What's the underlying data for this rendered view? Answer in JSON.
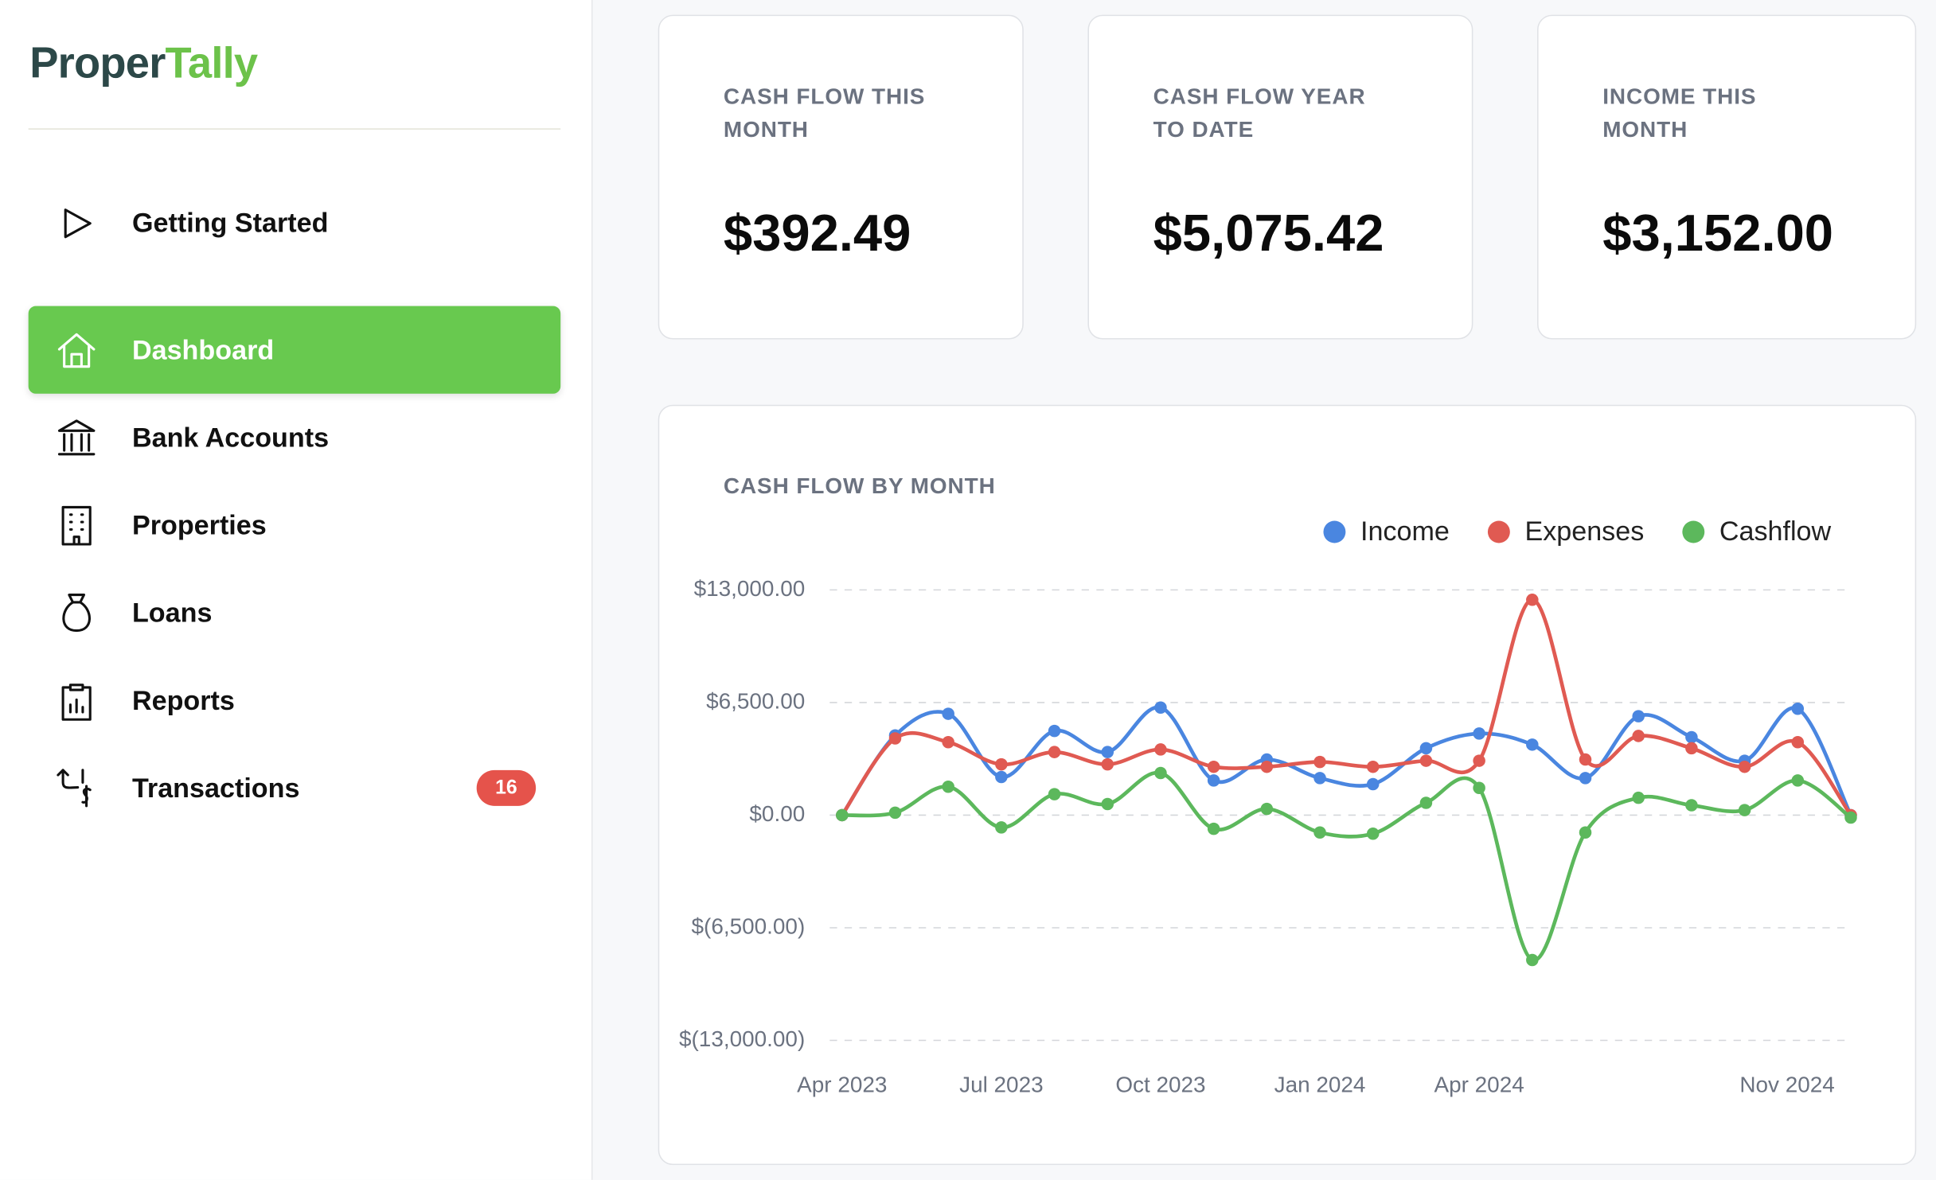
{
  "brand": {
    "parts": [
      "Proper",
      "Tally"
    ]
  },
  "nav": {
    "items": [
      {
        "label": "Getting Started"
      },
      {
        "label": "Dashboard"
      },
      {
        "label": "Bank Accounts"
      },
      {
        "label": "Properties"
      },
      {
        "label": "Loans"
      },
      {
        "label": "Reports"
      },
      {
        "label": "Transactions",
        "badge": 16
      }
    ]
  },
  "cards": [
    {
      "label": "CASH FLOW THIS MONTH",
      "value": "$392.49"
    },
    {
      "label": "CASH FLOW YEAR TO DATE",
      "value": "$5,075.42"
    },
    {
      "label": "INCOME THIS MONTH",
      "value": "$3,152.00"
    }
  ],
  "chart_data": {
    "type": "line",
    "title": "CASH FLOW BY MONTH",
    "categories": [
      "Apr 2023",
      null,
      null,
      "Jul 2023",
      null,
      null,
      "Oct 2023",
      null,
      null,
      "Jan 2024",
      null,
      null,
      "Apr 2024",
      null,
      null,
      null,
      null,
      null,
      null,
      "Nov 2024"
    ],
    "series": [
      {
        "name": "Income",
        "color": "#4a86e0",
        "values": [
          0,
          4600,
          5850,
          2200,
          4860,
          3640,
          6210,
          2000,
          3210,
          2140,
          1790,
          3860,
          4710,
          4070,
          2140,
          5710,
          4500,
          3140,
          6140,
          0
        ]
      },
      {
        "name": "Expenses",
        "color": "#e05a52",
        "values": [
          0,
          4430,
          4210,
          2930,
          3640,
          2930,
          3790,
          2790,
          2790,
          3070,
          2790,
          3140,
          3140,
          12430,
          3210,
          4570,
          3860,
          2790,
          4210,
          0
        ]
      },
      {
        "name": "Cashflow",
        "color": "#5cb85c",
        "values": [
          0,
          140,
          1640,
          -710,
          1210,
          640,
          2430,
          -790,
          360,
          -1000,
          -1070,
          710,
          1570,
          -8360,
          -1000,
          1000,
          570,
          290,
          2000,
          -140
        ]
      }
    ],
    "ylim": [
      -13000,
      13000
    ],
    "yticks": [
      {
        "value": 13000,
        "label": "$13,000.00"
      },
      {
        "value": 6500,
        "label": "$6,500.00"
      },
      {
        "value": 0,
        "label": "$0.00"
      },
      {
        "value": -6500,
        "label": "$(6,500.00)"
      },
      {
        "value": -13000,
        "label": "$(13,000.00)"
      }
    ],
    "grid": true,
    "legend": "top-right"
  }
}
